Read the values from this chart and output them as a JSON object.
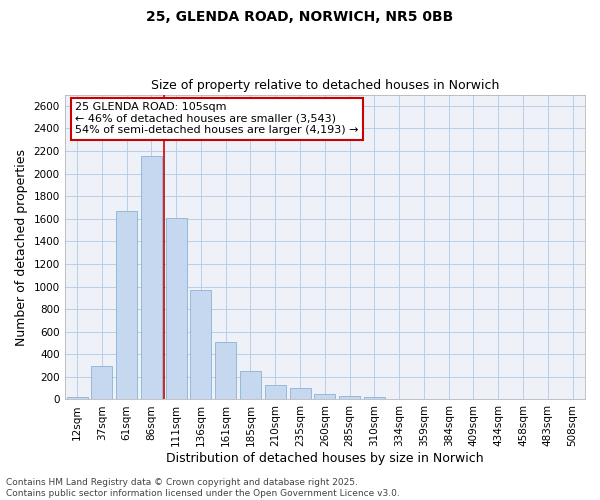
{
  "title": "25, GLENDA ROAD, NORWICH, NR5 0BB",
  "subtitle": "Size of property relative to detached houses in Norwich",
  "xlabel": "Distribution of detached houses by size in Norwich",
  "ylabel": "Number of detached properties",
  "categories": [
    "12sqm",
    "37sqm",
    "61sqm",
    "86sqm",
    "111sqm",
    "136sqm",
    "161sqm",
    "185sqm",
    "210sqm",
    "235sqm",
    "260sqm",
    "285sqm",
    "310sqm",
    "334sqm",
    "359sqm",
    "384sqm",
    "409sqm",
    "434sqm",
    "458sqm",
    "483sqm",
    "508sqm"
  ],
  "values": [
    20,
    300,
    1670,
    2160,
    1610,
    970,
    510,
    250,
    125,
    100,
    50,
    35,
    25,
    0,
    0,
    0,
    0,
    0,
    0,
    0,
    0
  ],
  "bar_color": "#c5d8f0",
  "bar_edge_color": "#7aaad0",
  "vline_x_index": 4,
  "vline_color": "#cc0000",
  "annotation_text": "25 GLENDA ROAD: 105sqm\n← 46% of detached houses are smaller (3,543)\n54% of semi-detached houses are larger (4,193) →",
  "annotation_box_facecolor": "#ffffff",
  "annotation_box_edgecolor": "#cc0000",
  "ylim": [
    0,
    2700
  ],
  "yticks": [
    0,
    200,
    400,
    600,
    800,
    1000,
    1200,
    1400,
    1600,
    1800,
    2000,
    2200,
    2400,
    2600
  ],
  "grid_color": "#b8cfe8",
  "bg_color": "#f0f4fa",
  "plot_bg_color": "#eef2f8",
  "footnote": "Contains HM Land Registry data © Crown copyright and database right 2025.\nContains public sector information licensed under the Open Government Licence v3.0.",
  "title_fontsize": 10,
  "subtitle_fontsize": 9,
  "axis_label_fontsize": 9,
  "tick_fontsize": 7.5,
  "footnote_fontsize": 6.5
}
